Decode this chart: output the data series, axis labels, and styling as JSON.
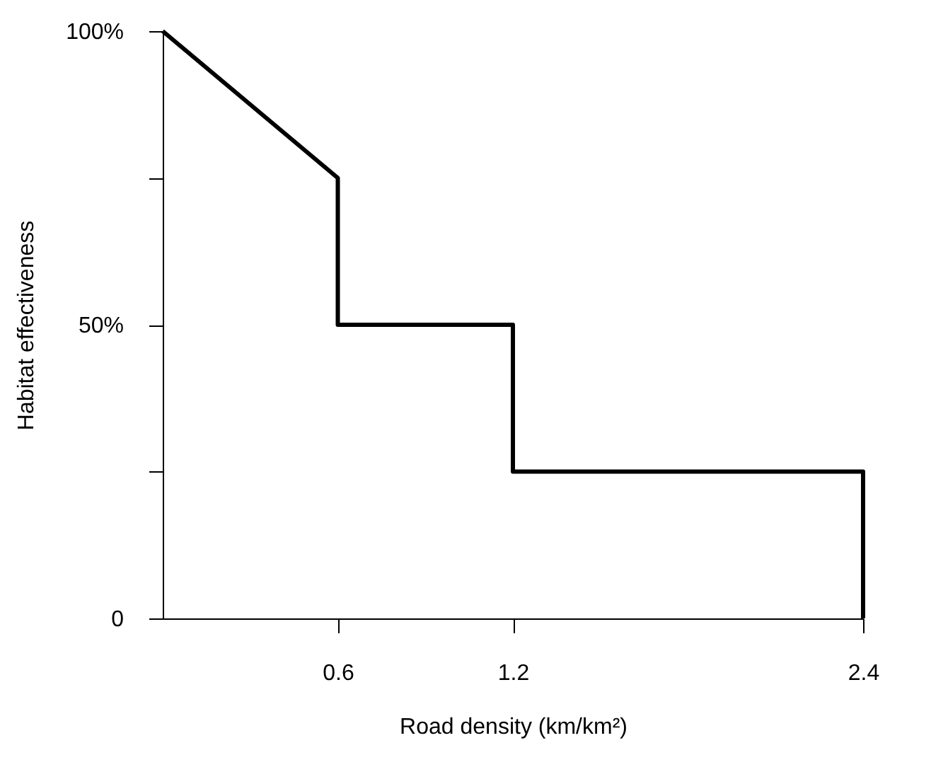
{
  "chart_data": {
    "type": "line",
    "xlabel": "Road density (km/km²)",
    "ylabel": "Habitat effectiveness",
    "x": [
      0,
      0.6,
      0.6,
      1.2,
      1.2,
      2.4,
      2.4
    ],
    "series": [
      {
        "color": "#000000",
        "values": [
          100,
          75,
          50,
          50,
          25,
          25,
          0
        ]
      }
    ],
    "xlim": [
      0,
      2.4
    ],
    "xticks": [
      0.6,
      1.2,
      2.4
    ],
    "ylim": [
      0,
      100
    ],
    "yticks": [
      0,
      {
        "value": 25,
        "label": null
      },
      {
        "value": 50,
        "label": "50%"
      },
      {
        "value": 75,
        "label": null
      },
      {
        "value": 100,
        "label": "100%"
      }
    ],
    "grid": false,
    "marker": "none",
    "line_style": "solid"
  }
}
